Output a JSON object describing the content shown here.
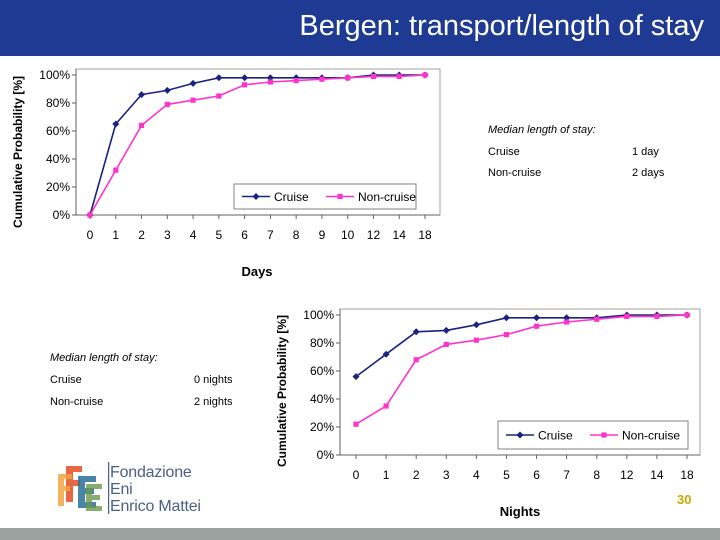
{
  "slide": {
    "title": "Bergen: transport/length of stay",
    "page_number": "30",
    "logo": {
      "line1": "Fondazione",
      "line2": "Eni",
      "line3": "Enrico Mattei"
    }
  },
  "median_box_top": {
    "heading": "Median length of stay:",
    "rows": [
      {
        "label": "Cruise",
        "value": "1 day"
      },
      {
        "label": "Non-cruise",
        "value": "2 days"
      }
    ]
  },
  "median_box_bottom": {
    "heading": "Median length of stay:",
    "rows": [
      {
        "label": "Cruise",
        "value": "0 nights"
      },
      {
        "label": "Non-cruise",
        "value": "2 nights"
      }
    ]
  },
  "colors": {
    "title_bar": "#1f3a93",
    "cruise": "#1a237e",
    "noncruise": "#ff33cc",
    "page_number": "#c8a800"
  },
  "chart_data": [
    {
      "type": "line",
      "xlabel": "Days",
      "ylabel": "Cumulative Probability [%]",
      "categories": [
        "0",
        "1",
        "2",
        "3",
        "4",
        "5",
        "6",
        "7",
        "8",
        "9",
        "10",
        "12",
        "14",
        "18"
      ],
      "yticks": [
        "0%",
        "20%",
        "40%",
        "60%",
        "80%",
        "100%"
      ],
      "ylim": [
        0,
        100
      ],
      "grid": false,
      "legend": "bottom-right",
      "series": [
        {
          "name": "Cruise",
          "values": [
            0,
            65,
            86,
            89,
            94,
            98,
            98,
            98,
            98,
            98,
            98,
            100,
            100,
            100
          ]
        },
        {
          "name": "Non-cruise",
          "values": [
            0,
            32,
            64,
            79,
            82,
            85,
            93,
            95,
            96,
            97,
            98,
            99,
            99,
            100
          ]
        }
      ]
    },
    {
      "type": "line",
      "xlabel": "Nights",
      "ylabel": "Cumulative Probability [%]",
      "categories": [
        "0",
        "1",
        "2",
        "3",
        "4",
        "5",
        "6",
        "7",
        "8",
        "12",
        "14",
        "18"
      ],
      "yticks": [
        "0%",
        "20%",
        "40%",
        "60%",
        "80%",
        "100%"
      ],
      "ylim": [
        0,
        100
      ],
      "grid": false,
      "legend": "bottom-right",
      "series": [
        {
          "name": "Cruise",
          "values": [
            56,
            72,
            88,
            89,
            93,
            98,
            98,
            98,
            98,
            100,
            100,
            100
          ]
        },
        {
          "name": "Non-cruise",
          "values": [
            22,
            35,
            68,
            79,
            82,
            86,
            92,
            95,
            97,
            99,
            99,
            100
          ]
        }
      ]
    }
  ]
}
